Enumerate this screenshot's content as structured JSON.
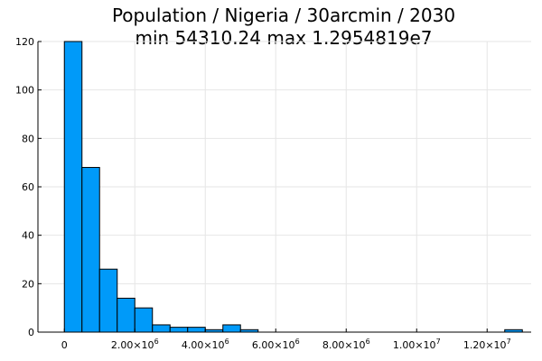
{
  "chart_data": {
    "type": "histogram",
    "title_line1": "Population / Nigeria / 30arcmin / 2030",
    "title_line2": "min 54310.24  max 1.2954819e7",
    "xlabel": "",
    "ylabel": "",
    "xlim": [
      -750000,
      13250000
    ],
    "ylim": [
      0,
      120
    ],
    "grid": true,
    "legend": "none",
    "bar_color": "#009af9",
    "bin_width": 500000,
    "bins": [
      {
        "start": 0,
        "end": 500000,
        "count": 120
      },
      {
        "start": 500000,
        "end": 1000000,
        "count": 68
      },
      {
        "start": 1000000,
        "end": 1500000,
        "count": 26
      },
      {
        "start": 1500000,
        "end": 2000000,
        "count": 14
      },
      {
        "start": 2000000,
        "end": 2500000,
        "count": 10
      },
      {
        "start": 2500000,
        "end": 3000000,
        "count": 3
      },
      {
        "start": 3000000,
        "end": 3500000,
        "count": 2
      },
      {
        "start": 3500000,
        "end": 4000000,
        "count": 2
      },
      {
        "start": 4000000,
        "end": 4500000,
        "count": 1
      },
      {
        "start": 4500000,
        "end": 5000000,
        "count": 3
      },
      {
        "start": 5000000,
        "end": 5500000,
        "count": 1
      },
      {
        "start": 5500000,
        "end": 6000000,
        "count": 0
      },
      {
        "start": 6000000,
        "end": 6500000,
        "count": 0
      },
      {
        "start": 6500000,
        "end": 7000000,
        "count": 0
      },
      {
        "start": 7000000,
        "end": 7500000,
        "count": 0
      },
      {
        "start": 7500000,
        "end": 8000000,
        "count": 0
      },
      {
        "start": 8000000,
        "end": 8500000,
        "count": 0
      },
      {
        "start": 8500000,
        "end": 9000000,
        "count": 0
      },
      {
        "start": 9000000,
        "end": 9500000,
        "count": 0
      },
      {
        "start": 9500000,
        "end": 10000000,
        "count": 0
      },
      {
        "start": 10000000,
        "end": 10500000,
        "count": 0
      },
      {
        "start": 10500000,
        "end": 11000000,
        "count": 0
      },
      {
        "start": 11000000,
        "end": 11500000,
        "count": 0
      },
      {
        "start": 11500000,
        "end": 12000000,
        "count": 0
      },
      {
        "start": 12000000,
        "end": 12500000,
        "count": 0
      },
      {
        "start": 12500000,
        "end": 13000000,
        "count": 1
      }
    ],
    "x_ticks": [
      {
        "value": 0,
        "mantissa": "0",
        "exp": ""
      },
      {
        "value": 2000000,
        "mantissa": "2.00×10",
        "exp": "6"
      },
      {
        "value": 4000000,
        "mantissa": "4.00×10",
        "exp": "6"
      },
      {
        "value": 6000000,
        "mantissa": "6.00×10",
        "exp": "6"
      },
      {
        "value": 8000000,
        "mantissa": "8.00×10",
        "exp": "6"
      },
      {
        "value": 10000000,
        "mantissa": "1.00×10",
        "exp": "7"
      },
      {
        "value": 12000000,
        "mantissa": "1.20×10",
        "exp": "7"
      }
    ],
    "y_ticks": [
      {
        "value": 0,
        "label": "0"
      },
      {
        "value": 20,
        "label": "20"
      },
      {
        "value": 40,
        "label": "40"
      },
      {
        "value": 60,
        "label": "60"
      },
      {
        "value": 80,
        "label": "80"
      },
      {
        "value": 100,
        "label": "100"
      },
      {
        "value": 120,
        "label": "120"
      }
    ]
  }
}
